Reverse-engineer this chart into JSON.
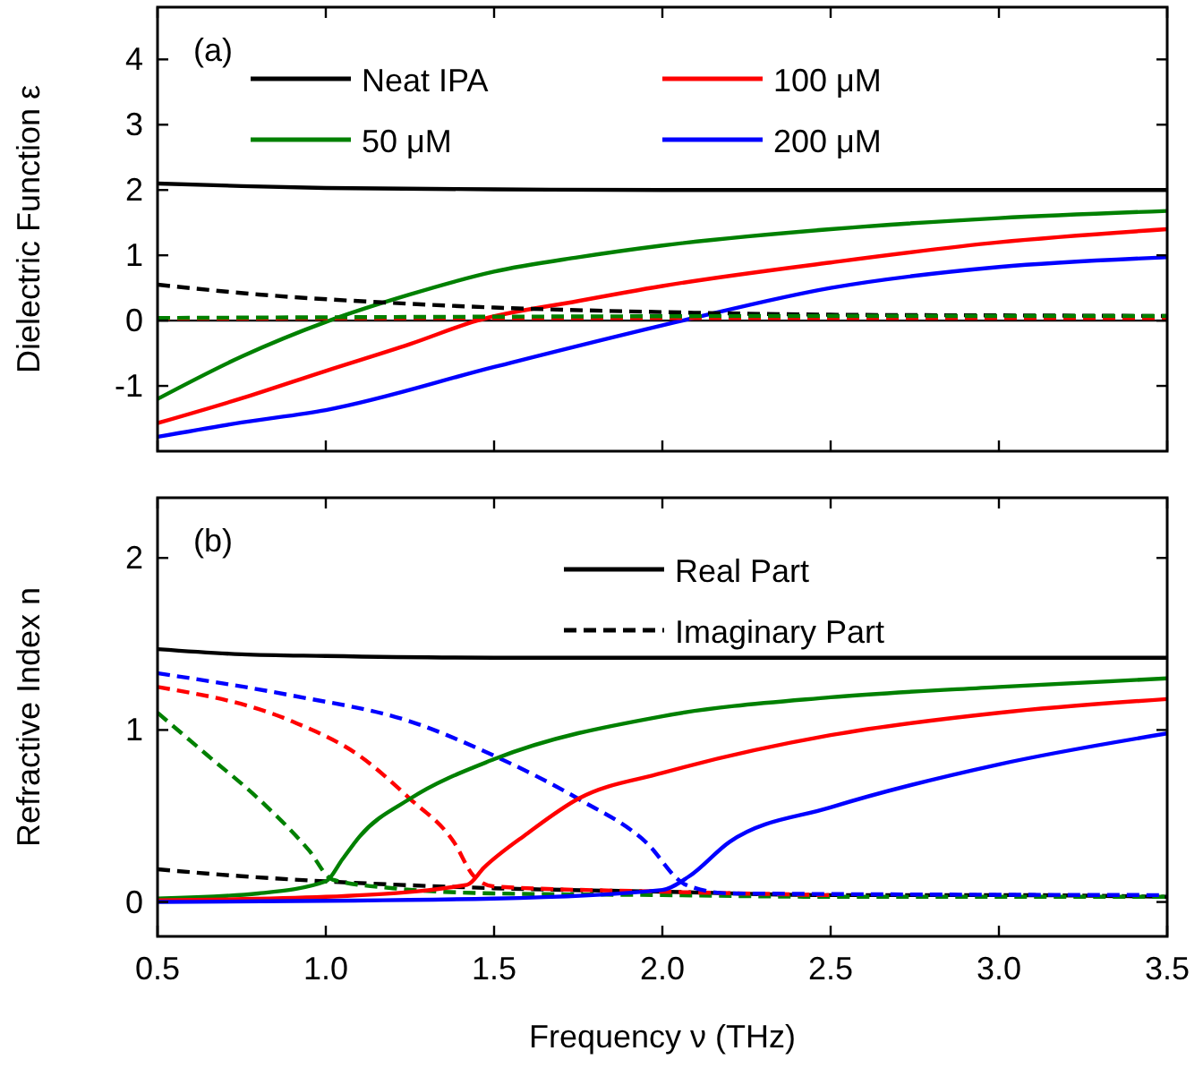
{
  "chart_data": [
    {
      "type": "line",
      "title": "(a)",
      "ylabel": "Dielectric Function ε",
      "xlim": [
        0.5,
        3.5
      ],
      "xticks": [
        0.5,
        1,
        1.5,
        2,
        2.5,
        3,
        3.5
      ],
      "ylim": [
        -2,
        4.8
      ],
      "yticks": [
        -1,
        0,
        1,
        2,
        3,
        4
      ],
      "tick_labels": "y",
      "legend": "top",
      "ref_lines": [
        {
          "axis": "y",
          "value": 0,
          "color": "#000000"
        }
      ],
      "series": [
        {
          "name": "Neat IPA",
          "color": "#000000",
          "x": [
            0.5,
            0.75,
            1.0,
            1.5,
            2.0,
            2.5,
            3.0,
            3.5
          ],
          "values": [
            2.1,
            2.06,
            2.03,
            2.01,
            2.0,
            2.0,
            2.0,
            2.0
          ]
        },
        {
          "name": "50 μM",
          "color": "#008000",
          "x": [
            0.5,
            0.75,
            1.0,
            1.25,
            1.5,
            1.75,
            2.0,
            2.5,
            3.0,
            3.5
          ],
          "values": [
            -1.2,
            -0.55,
            -0.02,
            0.4,
            0.75,
            0.97,
            1.15,
            1.4,
            1.57,
            1.68
          ]
        },
        {
          "name": "100 μM",
          "color": "#ff0000",
          "x": [
            0.5,
            0.75,
            1.0,
            1.25,
            1.45,
            1.75,
            2.0,
            2.5,
            3.0,
            3.5
          ],
          "values": [
            -1.57,
            -1.19,
            -0.77,
            -0.36,
            0,
            0.3,
            0.53,
            0.89,
            1.2,
            1.4
          ]
        },
        {
          "name": "200 μM",
          "color": "#0000ff",
          "x": [
            0.5,
            0.75,
            1.0,
            1.5,
            2.06,
            2.5,
            3.0,
            3.5
          ],
          "values": [
            -1.78,
            -1.56,
            -1.37,
            -0.71,
            0,
            0.5,
            0.82,
            0.97
          ]
        },
        {
          "color": "#000000",
          "line_style": "dashed",
          "x": [
            0.5,
            0.8,
            1.2,
            1.5,
            2.0,
            2.5,
            3.0,
            3.5
          ],
          "values": [
            0.55,
            0.4,
            0.27,
            0.2,
            0.13,
            0.09,
            0.08,
            0.07
          ]
        },
        {
          "color": "#ff0000",
          "line_style": "dashed",
          "x": [
            0.5,
            2.0,
            3.5
          ],
          "values": [
            0.03,
            0.04,
            0.04
          ]
        },
        {
          "color": "#008000",
          "line_style": "dashed",
          "x": [
            0.5,
            1.5,
            2.5,
            3.5
          ],
          "values": [
            0.04,
            0.06,
            0.07,
            0.07
          ]
        }
      ]
    },
    {
      "type": "line",
      "title": "(b)",
      "xlabel": "Frequency ν (THz)",
      "ylabel": "Refractive Index n",
      "xlim": [
        0.5,
        3.5
      ],
      "xticks": [
        0.5,
        {
          "value": 1,
          "label": "1.0"
        },
        1.5,
        {
          "value": 2,
          "label": "2.0"
        },
        2.5,
        {
          "value": 3,
          "label": "3.0"
        },
        3.5
      ],
      "ylim": [
        -0.2,
        2.35
      ],
      "yticks": [
        0,
        1,
        2
      ],
      "legend": "top",
      "series": [
        {
          "name": "Real Part",
          "color": "#000000",
          "x": [
            0.5,
            0.75,
            1.0,
            1.5,
            2.0,
            2.5,
            3.0,
            3.5
          ],
          "values": [
            1.47,
            1.44,
            1.43,
            1.42,
            1.42,
            1.42,
            1.42,
            1.42
          ]
        },
        {
          "name": "Imaginary Part",
          "color": "#000000",
          "line_style": "dashed",
          "x": [
            0.5,
            0.75,
            1.0,
            1.5,
            2.0,
            2.5,
            3.0,
            3.5
          ],
          "values": [
            0.19,
            0.15,
            0.12,
            0.08,
            0.06,
            0.04,
            0.04,
            0.03
          ]
        },
        {
          "color": "#008000",
          "line_style": "dashed",
          "x": [
            0.5,
            0.65,
            0.8,
            0.95,
            1.02,
            1.2,
            1.5,
            2.0,
            2.5,
            3.5
          ],
          "values": [
            1.1,
            0.85,
            0.6,
            0.3,
            0.13,
            0.08,
            0.05,
            0.04,
            0.03,
            0.03
          ]
        },
        {
          "color": "#ff0000",
          "line_style": "dashed",
          "x": [
            0.5,
            0.9,
            1.1,
            1.25,
            1.38,
            1.44,
            1.5,
            2.0,
            2.5
          ],
          "values": [
            1.25,
            1.05,
            0.85,
            0.6,
            0.35,
            0.15,
            0.09,
            0.06,
            0.04
          ]
        },
        {
          "color": "#0000ff",
          "line_style": "dashed",
          "x": [
            0.5,
            0.9,
            1.25,
            1.5,
            1.75,
            1.95,
            2.07,
            2.2,
            3.5
          ],
          "values": [
            1.33,
            1.2,
            1.05,
            0.85,
            0.6,
            0.35,
            0.1,
            0.05,
            0.04
          ]
        },
        {
          "color": "#008000",
          "x": [
            0.5,
            0.8,
            1.0,
            1.05,
            1.1,
            1.25,
            1.5,
            2.0,
            2.5,
            3.0,
            3.5
          ],
          "values": [
            0.02,
            0.05,
            0.12,
            0.25,
            0.38,
            0.6,
            0.83,
            1.08,
            1.19,
            1.25,
            1.3
          ]
        },
        {
          "color": "#ff0000",
          "x": [
            0.5,
            1.0,
            1.42,
            1.47,
            1.6,
            1.75,
            2.0,
            2.5,
            3.0,
            3.5
          ],
          "values": [
            0.01,
            0.03,
            0.1,
            0.2,
            0.4,
            0.6,
            0.75,
            0.97,
            1.1,
            1.18
          ]
        },
        {
          "color": "#0000ff",
          "x": [
            0.5,
            1.5,
            2.0,
            2.08,
            2.2,
            2.5,
            3.0,
            3.5
          ],
          "values": [
            0.0,
            0.02,
            0.07,
            0.15,
            0.35,
            0.55,
            0.8,
            0.98
          ]
        }
      ]
    }
  ]
}
